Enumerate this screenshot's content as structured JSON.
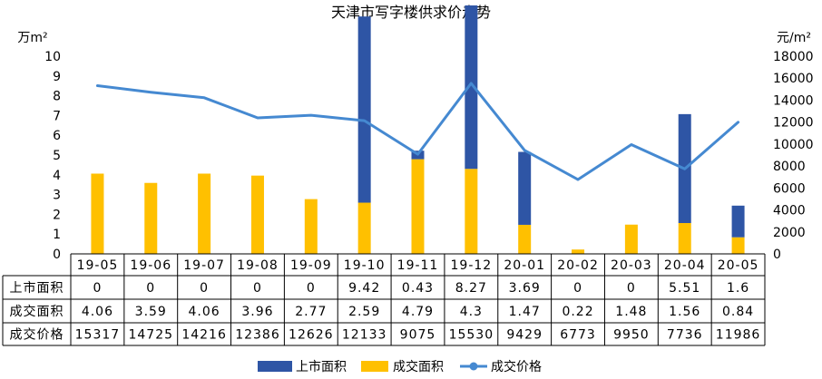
{
  "chart_data": {
    "type": "bar",
    "title": "天津市写字楼供求价走势",
    "left_unit": "万m²",
    "right_unit": "元/m²",
    "categories": [
      "19-05",
      "19-06",
      "19-07",
      "19-08",
      "19-09",
      "19-10",
      "19-11",
      "19-12",
      "20-01",
      "20-02",
      "20-03",
      "20-04",
      "20-05"
    ],
    "series": [
      {
        "name": "上市面积",
        "kind": "stacked-bar",
        "axis": "left",
        "color": "#2E55A5",
        "values": [
          0,
          0,
          0,
          0,
          0,
          9.42,
          0.43,
          8.27,
          3.69,
          0,
          0,
          5.51,
          1.6
        ]
      },
      {
        "name": "成交面积",
        "kind": "stacked-bar",
        "axis": "left",
        "color": "#FFC000",
        "values": [
          4.06,
          3.59,
          4.06,
          3.96,
          2.77,
          2.59,
          4.79,
          4.3,
          1.47,
          0.22,
          1.48,
          1.56,
          0.84
        ]
      },
      {
        "name": "成交价格",
        "kind": "line",
        "axis": "right",
        "color": "#4589D1",
        "values": [
          15317,
          14725,
          14216,
          12386,
          12626,
          12133,
          9075,
          15530,
          9429,
          6773,
          9950,
          7736,
          11986
        ]
      }
    ],
    "left_axis": {
      "min": 0,
      "max": 10,
      "ticks": [
        "0",
        "1",
        "2",
        "3",
        "4",
        "5",
        "6",
        "7",
        "8",
        "9",
        "10"
      ]
    },
    "right_axis": {
      "min": 0,
      "max": 18000,
      "ticks": [
        "0",
        "2000",
        "4000",
        "6000",
        "8000",
        "10000",
        "12000",
        "14000",
        "16000",
        "18000"
      ]
    },
    "table": {
      "row_labels": [
        "上市面积",
        "成交面积",
        "成交价格"
      ],
      "rows": [
        [
          "0",
          "0",
          "0",
          "0",
          "0",
          "9.42",
          "0.43",
          "8.27",
          "3.69",
          "0",
          "0",
          "5.51",
          "1.6"
        ],
        [
          "4.06",
          "3.59",
          "4.06",
          "3.96",
          "2.77",
          "2.59",
          "4.79",
          "4.3",
          "1.47",
          "0.22",
          "1.48",
          "1.56",
          "0.84"
        ],
        [
          "15317",
          "14725",
          "14216",
          "12386",
          "12626",
          "12133",
          "9075",
          "15530",
          "9429",
          "6773",
          "9950",
          "7736",
          "11986"
        ]
      ]
    },
    "legend": {
      "placement": "bottom",
      "items": [
        "上市面积",
        "成交面积",
        "成交价格"
      ]
    }
  }
}
